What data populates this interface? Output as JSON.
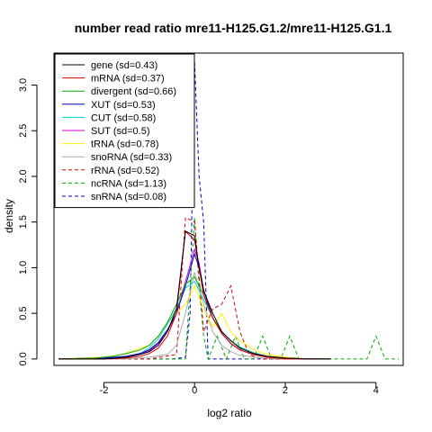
{
  "chart_data": {
    "type": "line",
    "title": "number read ratio mre11-H125.G1.2/mre11-H125.G1.1",
    "xlabel": "log2 ratio",
    "ylabel": "density",
    "xlim": [
      -3.1,
      4.6
    ],
    "ylim": [
      -0.07,
      3.35
    ],
    "xticks": [
      -2,
      0,
      2,
      4
    ],
    "yticks": [
      0.0,
      0.5,
      1.0,
      1.5,
      2.0,
      2.5,
      3.0
    ],
    "xtick_labels": [
      "-2",
      "0",
      "2",
      "4"
    ],
    "ytick_labels": [
      "0.0",
      "0.5",
      "1.0",
      "1.5",
      "2.0",
      "2.5",
      "3.0"
    ],
    "grid": false,
    "legend_position": "top-left",
    "series": [
      {
        "name": "gene (sd=0.43)",
        "color": "#000000",
        "dash": false,
        "x": [
          -3.0,
          -2.0,
          -1.5,
          -1.2,
          -1.0,
          -0.8,
          -0.6,
          -0.4,
          -0.2,
          0.0,
          0.1,
          0.2,
          0.4,
          0.6,
          0.8,
          1.0,
          1.3,
          1.6,
          2.0,
          2.5,
          3.0
        ],
        "y": [
          0.0,
          0.0,
          0.02,
          0.05,
          0.08,
          0.15,
          0.3,
          0.55,
          1.4,
          1.35,
          1.0,
          0.75,
          0.5,
          0.3,
          0.2,
          0.12,
          0.06,
          0.03,
          0.01,
          0.0,
          0.0
        ]
      },
      {
        "name": "mRNA (sd=0.37)",
        "color": "#dd0000",
        "dash": false,
        "x": [
          -3.0,
          -2.0,
          -1.5,
          -1.2,
          -1.0,
          -0.8,
          -0.6,
          -0.4,
          -0.2,
          0.0,
          0.1,
          0.2,
          0.4,
          0.6,
          0.8,
          1.0,
          1.3,
          1.6,
          2.0,
          2.5,
          3.0
        ],
        "y": [
          0.0,
          0.0,
          0.01,
          0.03,
          0.06,
          0.12,
          0.25,
          0.5,
          1.4,
          1.3,
          1.0,
          0.7,
          0.45,
          0.28,
          0.17,
          0.1,
          0.05,
          0.02,
          0.0,
          0.0,
          0.0
        ]
      },
      {
        "name": "divergent (sd=0.66)",
        "color": "#00aa00",
        "dash": false,
        "x": [
          -3.0,
          -2.2,
          -1.8,
          -1.5,
          -1.2,
          -1.0,
          -0.8,
          -0.6,
          -0.4,
          -0.2,
          0.0,
          0.2,
          0.4,
          0.6,
          0.8,
          1.0,
          1.3,
          1.6,
          2.0,
          2.5,
          3.0
        ],
        "y": [
          0.0,
          0.01,
          0.03,
          0.06,
          0.1,
          0.15,
          0.25,
          0.4,
          0.6,
          0.82,
          0.9,
          0.7,
          0.45,
          0.3,
          0.2,
          0.12,
          0.06,
          0.03,
          0.01,
          0.0,
          0.0
        ]
      },
      {
        "name": "XUT (sd=0.53)",
        "color": "#0000cc",
        "dash": false,
        "x": [
          -3.0,
          -2.0,
          -1.5,
          -1.2,
          -1.0,
          -0.8,
          -0.6,
          -0.4,
          -0.2,
          0.0,
          0.1,
          0.2,
          0.4,
          0.6,
          0.8,
          1.0,
          1.3,
          1.6,
          2.0,
          2.5,
          3.0
        ],
        "y": [
          0.0,
          0.01,
          0.03,
          0.06,
          0.1,
          0.18,
          0.32,
          0.5,
          0.8,
          1.15,
          1.0,
          0.75,
          0.45,
          0.28,
          0.17,
          0.1,
          0.05,
          0.02,
          0.01,
          0.0,
          0.0
        ]
      },
      {
        "name": "CUT (sd=0.58)",
        "color": "#00cccc",
        "dash": false,
        "x": [
          -3.0,
          -2.0,
          -1.5,
          -1.2,
          -1.0,
          -0.8,
          -0.6,
          -0.4,
          -0.2,
          0.0,
          0.2,
          0.4,
          0.6,
          0.8,
          1.0,
          1.3,
          1.6,
          2.0,
          2.5,
          3.0
        ],
        "y": [
          0.0,
          0.01,
          0.03,
          0.06,
          0.12,
          0.22,
          0.38,
          0.55,
          0.78,
          0.85,
          0.65,
          0.45,
          0.3,
          0.2,
          0.13,
          0.07,
          0.03,
          0.01,
          0.0,
          0.0
        ]
      },
      {
        "name": "SUT (sd=0.5)",
        "color": "#cc00cc",
        "dash": false,
        "x": [
          -3.0,
          -2.0,
          -1.5,
          -1.2,
          -1.0,
          -0.8,
          -0.6,
          -0.4,
          -0.2,
          0.0,
          0.1,
          0.2,
          0.4,
          0.6,
          0.8,
          1.0,
          1.3,
          1.6,
          2.0,
          2.5,
          3.0
        ],
        "y": [
          0.0,
          0.01,
          0.02,
          0.05,
          0.09,
          0.17,
          0.3,
          0.5,
          0.85,
          1.2,
          1.05,
          0.75,
          0.45,
          0.28,
          0.17,
          0.1,
          0.05,
          0.02,
          0.01,
          0.0,
          0.0
        ]
      },
      {
        "name": "tRNA (sd=0.78)",
        "color": "#ffee00",
        "dash": false,
        "x": [
          -3.0,
          -2.0,
          -1.6,
          -1.3,
          -1.0,
          -0.8,
          -0.6,
          -0.4,
          -0.2,
          0.0,
          0.2,
          0.4,
          0.6,
          0.8,
          1.0,
          1.3,
          1.6,
          2.0,
          2.5,
          3.0
        ],
        "y": [
          0.0,
          0.02,
          0.05,
          0.1,
          0.15,
          0.25,
          0.4,
          0.5,
          0.6,
          0.8,
          0.55,
          0.35,
          0.5,
          0.3,
          0.2,
          0.1,
          0.05,
          0.02,
          0.0,
          0.0
        ]
      },
      {
        "name": "snoRNA (sd=0.33)",
        "color": "#aaaaaa",
        "dash": false,
        "x": [
          -3.0,
          -1.5,
          -1.0,
          -0.6,
          -0.4,
          -0.2,
          0.0,
          0.2,
          0.4,
          0.6,
          0.8,
          1.0,
          1.5,
          2.0,
          3.0
        ],
        "y": [
          0.0,
          0.0,
          0.02,
          0.05,
          0.15,
          0.5,
          0.95,
          0.6,
          0.3,
          0.15,
          0.08,
          0.04,
          0.01,
          0.0,
          0.0
        ]
      },
      {
        "name": "rRNA (sd=0.52)",
        "color": "#dd0000",
        "dash": true,
        "x": [
          -3.0,
          -1.0,
          -0.4,
          -0.2,
          0.0,
          0.2,
          0.4,
          0.6,
          0.8,
          1.0,
          1.2,
          1.5,
          2.0,
          3.0
        ],
        "y": [
          0.0,
          0.0,
          0.05,
          1.55,
          1.5,
          0.3,
          0.55,
          0.6,
          0.8,
          0.3,
          0.05,
          0.0,
          0.0,
          0.0
        ]
      },
      {
        "name": "ncRNA (sd=1.13)",
        "color": "#00aa00",
        "dash": true,
        "x": [
          -3.0,
          -0.4,
          -0.2,
          0.0,
          0.1,
          0.2,
          0.3,
          0.5,
          0.7,
          0.9,
          1.1,
          1.3,
          1.5,
          1.7,
          1.9,
          2.1,
          2.3,
          3.5,
          3.8,
          4.0,
          4.2,
          4.5
        ],
        "y": [
          0.0,
          0.0,
          0.0,
          1.55,
          0.8,
          0.25,
          0.0,
          0.25,
          0.0,
          0.25,
          0.0,
          0.0,
          0.25,
          0.0,
          0.0,
          0.25,
          0.0,
          0.0,
          0.0,
          0.25,
          0.0,
          0.0
        ]
      },
      {
        "name": "snRNA (sd=0.08)",
        "color": "#0000cc",
        "dash": true,
        "x": [
          -3.0,
          -0.5,
          -0.2,
          -0.1,
          0.0,
          0.1,
          0.2,
          0.3,
          0.5,
          1.0,
          3.0
        ],
        "y": [
          0.0,
          0.0,
          0.02,
          0.5,
          3.25,
          2.0,
          1.5,
          0.0,
          0.0,
          0.0,
          0.0
        ]
      }
    ]
  }
}
